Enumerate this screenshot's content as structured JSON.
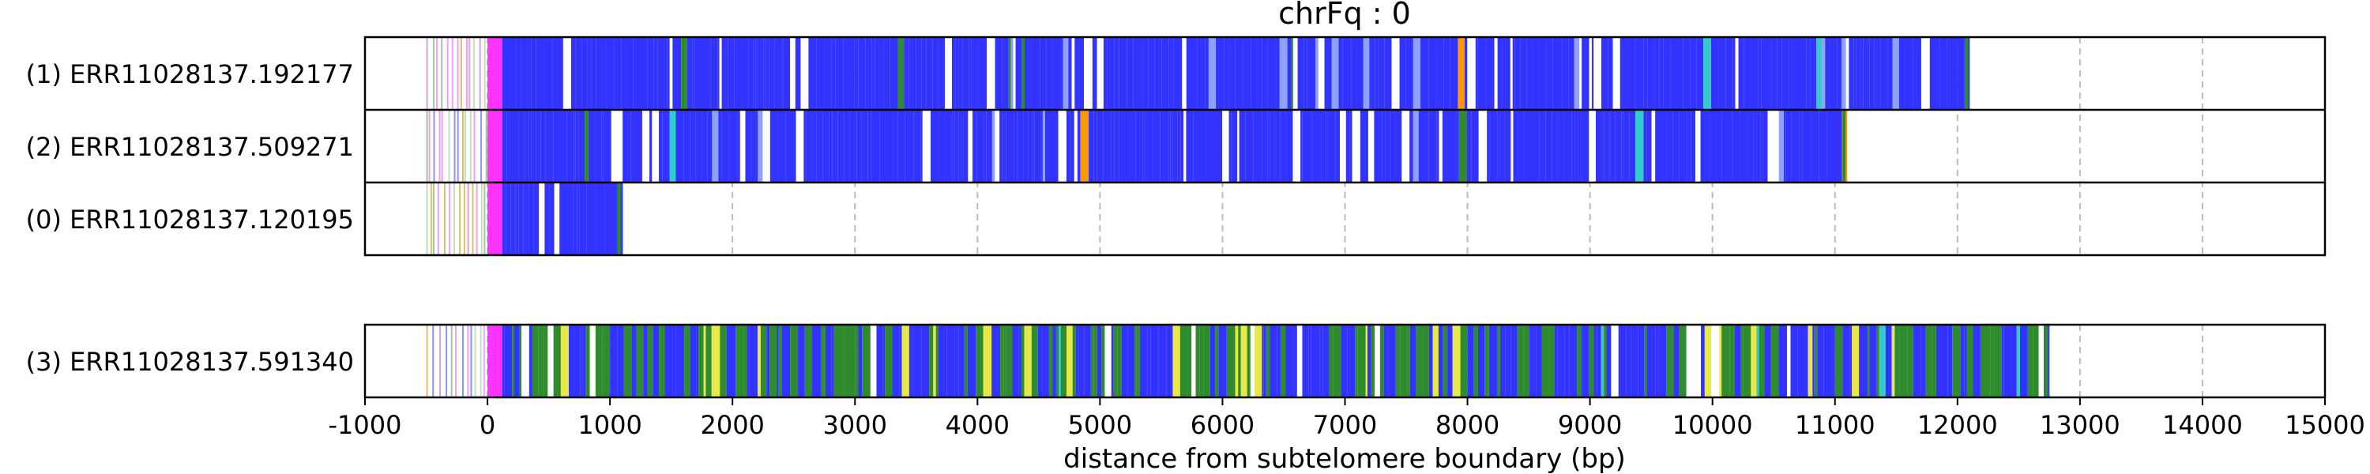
{
  "chart_data": {
    "type": "read-map",
    "title": "chrFq : 0",
    "xlabel": "distance from subtelomere boundary (bp)",
    "xlim": [
      -1000,
      15000
    ],
    "xticks": [
      -1000,
      0,
      1000,
      2000,
      3000,
      4000,
      5000,
      6000,
      7000,
      8000,
      9000,
      10000,
      11000,
      12000,
      13000,
      14000,
      15000
    ],
    "grid": "vertical dashed at major ticks",
    "legend": "none",
    "colors": {
      "blue": "#3333ff",
      "green": "#2e8b2e",
      "yellow": "#e8e84a",
      "magenta": "#ff33ff",
      "orange": "#ff9900",
      "cyan": "#33cccc",
      "grid": "#bbbbbb"
    },
    "groups": [
      {
        "reads": [
          {
            "label": "(1) ERR11028137.192177",
            "start": -500,
            "end": 12100,
            "dominant": "blue"
          },
          {
            "label": "(2) ERR11028137.509271",
            "start": -500,
            "end": 11100,
            "dominant": "blue"
          },
          {
            "label": "(0) ERR11028137.120195",
            "start": -500,
            "end": 1100,
            "dominant": "blue"
          }
        ]
      },
      {
        "reads": [
          {
            "label": "(3) ERR11028137.591340",
            "start": -500,
            "end": 12750,
            "dominant": "blue-green"
          }
        ]
      }
    ]
  }
}
